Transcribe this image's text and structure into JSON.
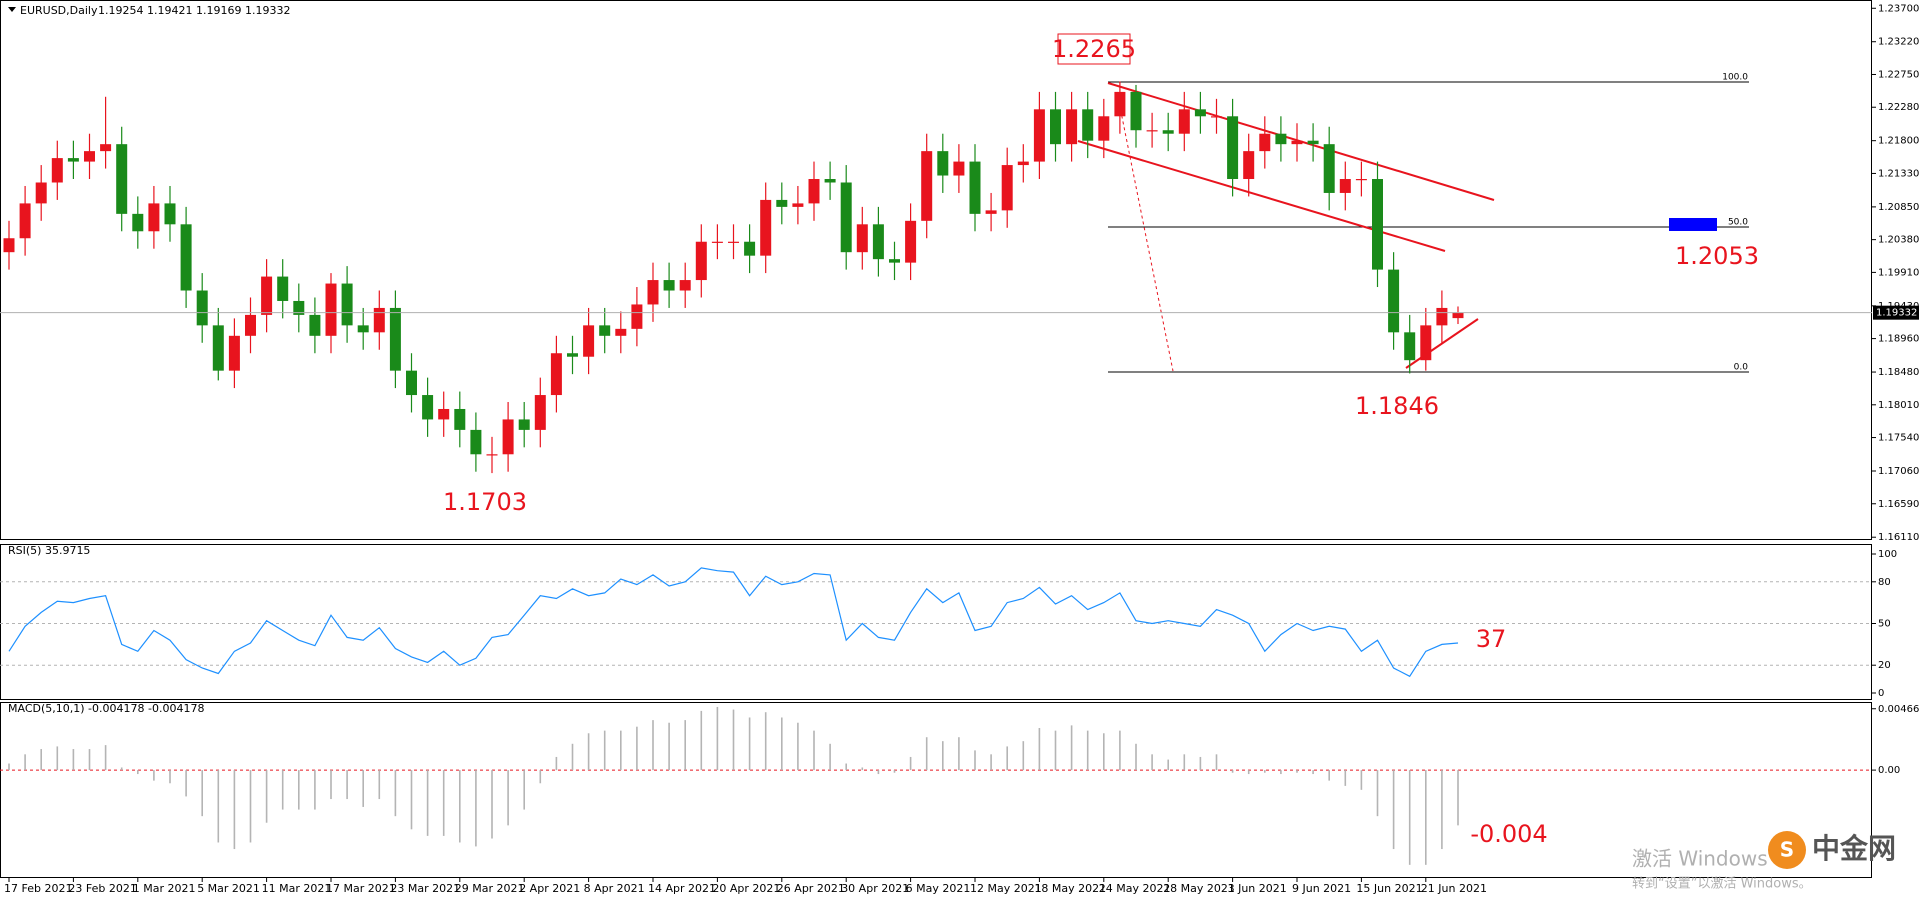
{
  "chart_data": [
    {
      "type": "candlestick",
      "title": "EURUSD,Daily",
      "subtitle": "1.19254 1.19421 1.19169 1.19332",
      "categories": [
        "17 Feb 2021",
        null,
        null,
        null,
        "23 Feb 2021",
        null,
        null,
        null,
        "1 Mar 2021",
        null,
        null,
        null,
        "5 Mar 2021",
        null,
        null,
        null,
        "11 Mar 2021",
        null,
        null,
        null,
        "17 Mar 2021",
        null,
        null,
        null,
        "23 Mar 2021",
        null,
        null,
        null,
        "29 Mar 2021",
        null,
        null,
        null,
        "2 Apr 2021",
        null,
        null,
        null,
        "8 Apr 2021",
        null,
        null,
        null,
        "14 Apr 2021",
        null,
        null,
        null,
        "20 Apr 2021",
        null,
        null,
        null,
        "26 Apr 2021",
        null,
        null,
        null,
        "30 Apr 2021",
        null,
        null,
        null,
        "6 May 2021",
        null,
        null,
        null,
        "12 May 2021",
        null,
        null,
        null,
        "18 May 2021",
        null,
        null,
        null,
        "24 May 2021",
        null,
        null,
        null,
        "28 May 2021",
        null,
        null,
        null,
        "3 Jun 2021",
        null,
        null,
        null,
        "9 Jun 2021",
        null,
        null,
        null,
        "15 Jun 2021",
        null,
        null,
        null,
        "21 Jun 2021",
        null,
        null
      ],
      "open": [
        1.202,
        1.204,
        1.209,
        1.212,
        1.2155,
        1.215,
        1.2165,
        1.2175,
        1.2075,
        1.205,
        1.209,
        1.206,
        1.1965,
        1.1915,
        1.185,
        1.19,
        1.193,
        1.1985,
        1.195,
        1.193,
        1.19,
        1.1975,
        1.1915,
        1.1905,
        1.194,
        1.185,
        1.1815,
        1.178,
        1.1795,
        1.1765,
        1.173,
        1.173,
        1.178,
        1.1765,
        1.1815,
        1.1875,
        1.187,
        1.1915,
        1.19,
        1.191,
        1.1945,
        1.198,
        1.1965,
        1.198,
        1.2035,
        1.2035,
        1.2035,
        1.2015,
        1.2095,
        1.2085,
        1.209,
        1.2125,
        1.212,
        1.202,
        1.206,
        1.201,
        1.2005,
        1.2065,
        1.2165,
        1.213,
        1.215,
        1.2075,
        1.208,
        1.2145,
        1.215,
        1.2225,
        1.2175,
        1.2225,
        1.218,
        1.2215,
        1.225,
        1.2195,
        1.2195,
        1.219,
        1.2225,
        1.2215,
        1.2215,
        1.2125,
        1.2165,
        1.219,
        1.2175,
        1.218,
        1.2175,
        1.2105,
        1.2125,
        1.2125,
        1.1995,
        1.1905,
        1.1865,
        1.1915,
        1.19254
      ],
      "high": [
        1.2065,
        1.2115,
        1.2145,
        1.218,
        1.218,
        1.219,
        1.2243,
        1.22,
        1.21,
        1.2115,
        1.2115,
        1.2085,
        1.199,
        1.194,
        1.1925,
        1.1955,
        1.201,
        1.201,
        1.1975,
        1.1955,
        1.199,
        1.2,
        1.194,
        1.1965,
        1.1965,
        1.1875,
        1.184,
        1.182,
        1.182,
        1.179,
        1.1755,
        1.1805,
        1.1805,
        1.184,
        1.19,
        1.19,
        1.194,
        1.194,
        1.1935,
        1.197,
        1.2005,
        1.2005,
        1.2005,
        1.206,
        1.206,
        1.206,
        1.206,
        1.212,
        1.212,
        1.2115,
        1.215,
        1.215,
        1.2145,
        1.2085,
        1.2085,
        1.2035,
        1.209,
        1.219,
        1.219,
        1.2175,
        1.2175,
        1.2105,
        1.217,
        1.2175,
        1.225,
        1.225,
        1.225,
        1.225,
        1.224,
        1.2265,
        1.226,
        1.222,
        1.222,
        1.225,
        1.225,
        1.224,
        1.224,
        1.219,
        1.2215,
        1.2215,
        1.2205,
        1.2205,
        1.22,
        1.215,
        1.215,
        1.215,
        1.202,
        1.193,
        1.194,
        1.1965,
        1.19421
      ],
      "low": [
        1.1995,
        1.2015,
        1.2065,
        1.2095,
        1.2125,
        1.2125,
        1.214,
        1.205,
        1.2025,
        1.2025,
        1.2035,
        1.194,
        1.189,
        1.1836,
        1.1825,
        1.1875,
        1.1905,
        1.1925,
        1.1905,
        1.1875,
        1.1875,
        1.189,
        1.188,
        1.188,
        1.1825,
        1.179,
        1.1755,
        1.1755,
        1.174,
        1.1705,
        1.1703,
        1.1705,
        1.174,
        1.174,
        1.179,
        1.1845,
        1.1845,
        1.1875,
        1.1875,
        1.1885,
        1.192,
        1.194,
        1.194,
        1.1955,
        1.201,
        1.201,
        1.199,
        1.199,
        1.206,
        1.206,
        1.2065,
        1.2095,
        1.1995,
        1.1995,
        1.1985,
        1.198,
        1.198,
        1.204,
        1.2105,
        1.2105,
        1.205,
        1.205,
        1.2055,
        1.212,
        1.2125,
        1.215,
        1.215,
        1.2155,
        1.2155,
        1.219,
        1.217,
        1.217,
        1.2165,
        1.2165,
        1.219,
        1.219,
        1.21,
        1.21,
        1.214,
        1.215,
        1.215,
        1.215,
        1.208,
        1.208,
        1.21,
        1.197,
        1.188,
        1.1846,
        1.185,
        1.189,
        1.19169
      ],
      "close": [
        1.204,
        1.209,
        1.212,
        1.2155,
        1.215,
        1.2165,
        1.2175,
        1.2075,
        1.205,
        1.209,
        1.206,
        1.1965,
        1.1915,
        1.185,
        1.19,
        1.193,
        1.1985,
        1.195,
        1.193,
        1.19,
        1.1975,
        1.1915,
        1.1905,
        1.194,
        1.185,
        1.1815,
        1.178,
        1.1795,
        1.1765,
        1.173,
        1.173,
        1.178,
        1.1765,
        1.1815,
        1.1875,
        1.187,
        1.1915,
        1.19,
        1.191,
        1.1945,
        1.198,
        1.1965,
        1.198,
        1.2035,
        1.2035,
        1.2035,
        1.2015,
        1.2095,
        1.2085,
        1.209,
        1.2125,
        1.212,
        1.202,
        1.206,
        1.201,
        1.2005,
        1.2065,
        1.2165,
        1.213,
        1.215,
        1.2075,
        1.208,
        1.2145,
        1.215,
        1.2225,
        1.2175,
        1.2225,
        1.218,
        1.2215,
        1.225,
        1.2195,
        1.2195,
        1.219,
        1.2225,
        1.2215,
        1.2215,
        1.2125,
        1.2165,
        1.219,
        1.2175,
        1.218,
        1.2175,
        1.2105,
        1.2125,
        1.2125,
        1.1995,
        1.1905,
        1.1865,
        1.1915,
        1.194,
        1.19332
      ],
      "up_color": "#e8141e",
      "down_color": "#1a8a1a",
      "ylim": [
        1.1607,
        1.2379
      ],
      "yticks": [
        {
          "value": 1.237,
          "label": "1.23700"
        },
        {
          "value": 1.2322,
          "label": "1.23220"
        },
        {
          "value": 1.2275,
          "label": "1.22750"
        },
        {
          "value": 1.2228,
          "label": "1.22280"
        },
        {
          "value": 1.218,
          "label": "1.21800"
        },
        {
          "value": 1.2133,
          "label": "1.21330"
        },
        {
          "value": 1.2085,
          "label": "1.20850"
        },
        {
          "value": 1.2038,
          "label": "1.20380"
        },
        {
          "value": 1.1991,
          "label": "1.19910"
        },
        {
          "value": 1.1943,
          "label": "1.19430"
        },
        {
          "value": 1.1896,
          "label": "1.18960"
        },
        {
          "value": 1.1848,
          "label": "1.18480"
        },
        {
          "value": 1.1801,
          "label": "1.18010"
        },
        {
          "value": 1.1754,
          "label": "1.17540"
        },
        {
          "value": 1.1706,
          "label": "1.17060"
        },
        {
          "value": 1.1659,
          "label": "1.16590"
        },
        {
          "value": 1.1611,
          "label": "1.16110"
        }
      ],
      "grid": false,
      "price_tag": {
        "value": 1.19332,
        "label": "1.19332"
      },
      "annotations": [
        "1.2265",
        "1.2053",
        "1.1846",
        "1.1703"
      ],
      "fib_labels": [
        "100.0",
        "50.0",
        "0.0"
      ]
    },
    {
      "type": "line",
      "title": "RSI(5) 35.9715",
      "color": "#1e90ff",
      "values": [
        30,
        48,
        58,
        66,
        65,
        68,
        70,
        35,
        30,
        45,
        38,
        24,
        18,
        14,
        30,
        36,
        52,
        45,
        38,
        34,
        56,
        40,
        38,
        47,
        32,
        26,
        22,
        30,
        20,
        25,
        40,
        42,
        56,
        70,
        68,
        75,
        70,
        72,
        82,
        78,
        85,
        77,
        80,
        90,
        88,
        87,
        70,
        84,
        78,
        80,
        86,
        85,
        38,
        50,
        40,
        38,
        58,
        75,
        65,
        72,
        45,
        48,
        65,
        68,
        76,
        64,
        70,
        60,
        65,
        72,
        52,
        50,
        52,
        50,
        48,
        60,
        56,
        50,
        30,
        42,
        50,
        45,
        48,
        46,
        30,
        38,
        18,
        12,
        30,
        35,
        36
      ],
      "ylim": [
        0,
        100
      ],
      "yticks": [
        100,
        80,
        50,
        20,
        0
      ],
      "grid": true,
      "annotation": "37"
    },
    {
      "type": "bar",
      "title": "MACD(5,10,1) -0.004178 -0.004178",
      "color": "#b4b4b4",
      "values": [
        0.0005,
        0.0012,
        0.0016,
        0.0018,
        0.0016,
        0.0016,
        0.0019,
        0.0002,
        -0.0003,
        -0.0008,
        -0.001,
        -0.002,
        -0.0035,
        -0.0055,
        -0.006,
        -0.0055,
        -0.004,
        -0.003,
        -0.003,
        -0.003,
        -0.0022,
        -0.0022,
        -0.0028,
        -0.0022,
        -0.0035,
        -0.0045,
        -0.005,
        -0.005,
        -0.0055,
        -0.0058,
        -0.0052,
        -0.0042,
        -0.003,
        -0.001,
        0.001,
        0.002,
        0.0028,
        0.003,
        0.003,
        0.0033,
        0.0038,
        0.0036,
        0.0038,
        0.0045,
        0.0048,
        0.0046,
        0.004,
        0.0044,
        0.004,
        0.0036,
        0.003,
        0.002,
        0.0005,
        0.0002,
        -0.0003,
        -0.0002,
        0.001,
        0.0025,
        0.0022,
        0.0025,
        0.0015,
        0.0012,
        0.0018,
        0.0022,
        0.0032,
        0.003,
        0.0034,
        0.003,
        0.0028,
        0.003,
        0.002,
        0.0012,
        0.0008,
        0.0012,
        0.001,
        0.0012,
        -0.0002,
        -0.0003,
        -0.0002,
        -0.0003,
        -0.0002,
        -0.0003,
        -0.0008,
        -0.0012,
        -0.0015,
        -0.0035,
        -0.006,
        -0.0072,
        -0.0072,
        -0.006,
        -0.0042
      ],
      "ylim": [
        -0.0082,
        0.0051
      ],
      "yticks": [
        0.004663,
        {
          "value": 0,
          "label": "0.00"
        }
      ],
      "grid": false,
      "annotation": "-0.004"
    }
  ],
  "watermark": {
    "line1": "激活 Windows",
    "line2": "转到“设置”以激活 Windows。"
  },
  "logo": "中金网"
}
